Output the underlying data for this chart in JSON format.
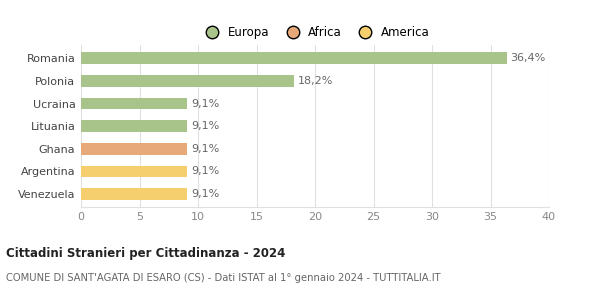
{
  "categories": [
    "Venezuela",
    "Argentina",
    "Ghana",
    "Lituania",
    "Ucraina",
    "Polonia",
    "Romania"
  ],
  "values": [
    9.1,
    9.1,
    9.1,
    9.1,
    9.1,
    18.2,
    36.4
  ],
  "labels": [
    "9,1%",
    "9,1%",
    "9,1%",
    "9,1%",
    "9,1%",
    "18,2%",
    "36,4%"
  ],
  "bar_colors": [
    "#f5cf6e",
    "#f5cf6e",
    "#e8a97a",
    "#a8c48a",
    "#a8c48a",
    "#a8c48a",
    "#a8c48a"
  ],
  "legend": [
    {
      "label": "Europa",
      "color": "#a8c48a"
    },
    {
      "label": "Africa",
      "color": "#e8a97a"
    },
    {
      "label": "America",
      "color": "#f5cf6e"
    }
  ],
  "xlim": [
    0,
    40
  ],
  "xticks": [
    0,
    5,
    10,
    15,
    20,
    25,
    30,
    35,
    40
  ],
  "title": "Cittadini Stranieri per Cittadinanza - 2024",
  "subtitle": "COMUNE DI SANT'AGATA DI ESARO (CS) - Dati ISTAT al 1° gennaio 2024 - TUTTITALIA.IT",
  "background_color": "#ffffff",
  "grid_color": "#e0e0e0",
  "label_fontsize": 8,
  "tick_fontsize": 8,
  "legend_fontsize": 8.5,
  "bar_height": 0.52
}
